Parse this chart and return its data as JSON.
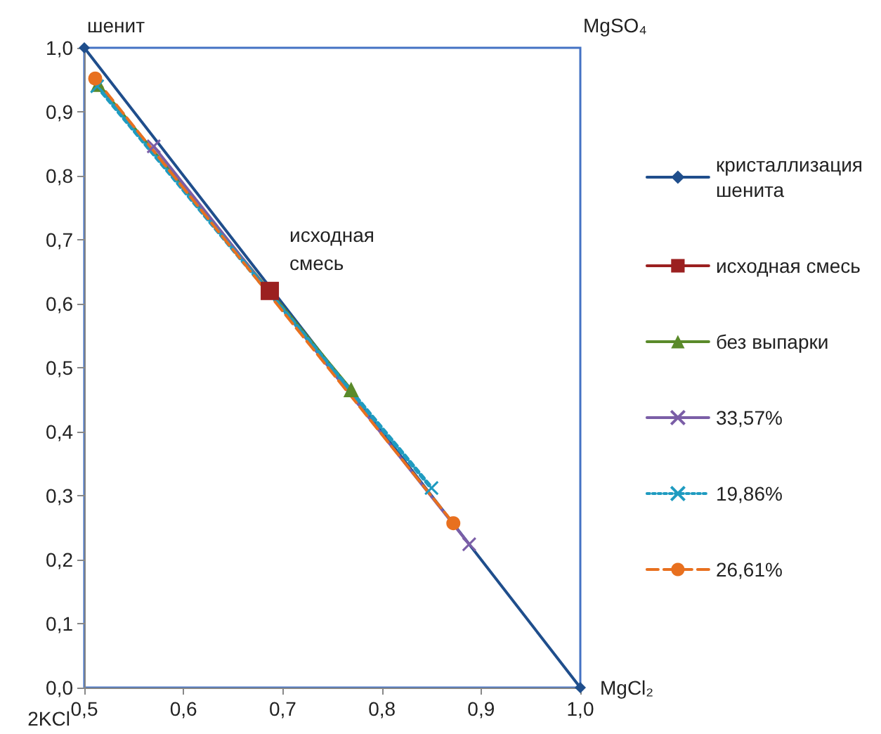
{
  "chart_data": {
    "type": "line",
    "xlim": [
      0.5,
      1.0
    ],
    "ylim": [
      0,
      1.0
    ],
    "xticks": [
      {
        "value": 0.5,
        "label": "0,5"
      },
      {
        "value": 0.6,
        "label": "0,6"
      },
      {
        "value": 0.7,
        "label": "0,7"
      },
      {
        "value": 0.8,
        "label": "0,8"
      },
      {
        "value": 0.9,
        "label": "0,9"
      },
      {
        "value": 1.0,
        "label": "1,0"
      }
    ],
    "yticks": [
      {
        "value": 0,
        "label": "0,0"
      },
      {
        "value": 0.1,
        "label": "0,1"
      },
      {
        "value": 0.2,
        "label": "0,2"
      },
      {
        "value": 0.3,
        "label": "0,3"
      },
      {
        "value": 0.4,
        "label": "0,4"
      },
      {
        "value": 0.5,
        "label": "0,5"
      },
      {
        "value": 0.6,
        "label": "0,6"
      },
      {
        "value": 0.7,
        "label": "0,7"
      },
      {
        "value": 0.8,
        "label": "0,8"
      },
      {
        "value": 0.9,
        "label": "0,9"
      },
      {
        "value": 1.0,
        "label": "1,0"
      }
    ],
    "grid": false,
    "legend": "right",
    "series": [
      {
        "name": "кристаллизация шенита",
        "color": "#1f4e8c",
        "marker": "diamond",
        "line_style": "solid",
        "x": [
          0.5,
          1.0
        ],
        "values": [
          1.0,
          0
        ]
      },
      {
        "name": "исходная смесь",
        "color": "#9b2020",
        "marker": "square",
        "line_style": "solid",
        "x": [
          0.687
        ],
        "values": [
          0.62
        ]
      },
      {
        "name": "без выпарки",
        "color": "#5a8a2a",
        "marker": "triangle",
        "line_style": "solid",
        "x": [
          0.514,
          0.769
        ],
        "values": [
          0.943,
          0.466
        ]
      },
      {
        "name": "33,57%",
        "color": "#7b5ea7",
        "marker": "cross",
        "line_style": "solid",
        "x": [
          0.57,
          0.888
        ],
        "values": [
          0.846,
          0.224
        ]
      },
      {
        "name": "19,86%",
        "color": "#1f9bc0",
        "marker": "cross",
        "line_style": "dotted",
        "x": [
          0.513,
          0.85
        ],
        "values": [
          0.94,
          0.312
        ]
      },
      {
        "name": "26,61%",
        "color": "#e8701f",
        "marker": "circle",
        "line_style": "dashed",
        "x": [
          0.511,
          0.872
        ],
        "values": [
          0.952,
          0.257
        ]
      }
    ],
    "annotations": [
      {
        "text": "шенит",
        "x": 0.5,
        "y": 1.0
      },
      "MgSO₄",
      "MgCl₂",
      "2KCl",
      {
        "text": "исходная смесь",
        "x": 0.687,
        "y": 0.62
      }
    ]
  }
}
